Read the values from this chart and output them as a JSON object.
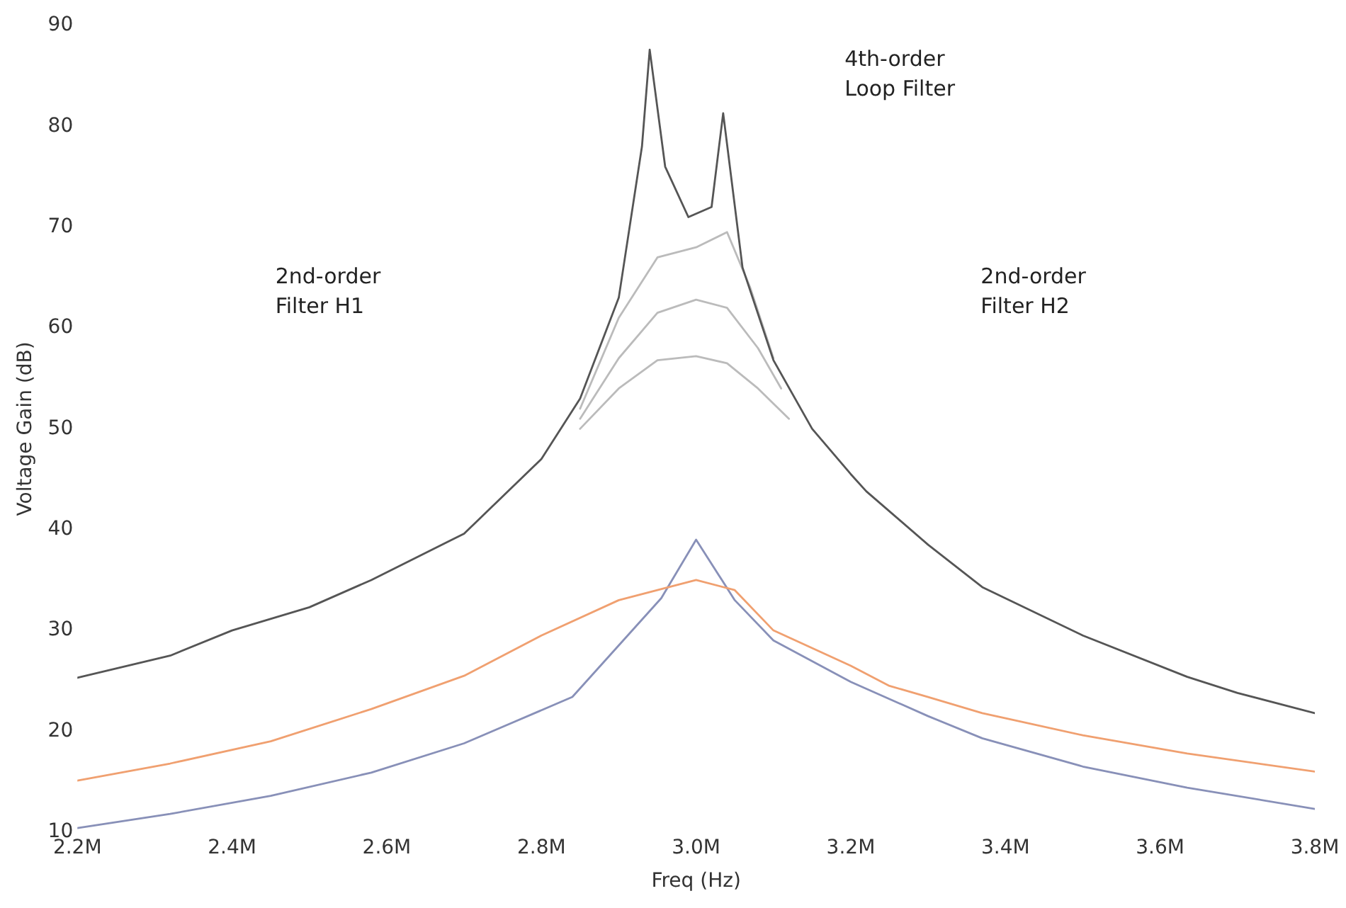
{
  "chart_data": {
    "type": "line",
    "xlabel": "Freq (Hz)",
    "ylabel": "Voltage Gain (dB)",
    "xlim": [
      2200000,
      3800000
    ],
    "ylim": [
      10,
      90
    ],
    "xticks": [
      {
        "value": 2200000,
        "label": "2.2M"
      },
      {
        "value": 2400000,
        "label": "2.4M"
      },
      {
        "value": 2600000,
        "label": "2.6M"
      },
      {
        "value": 2800000,
        "label": "2.8M"
      },
      {
        "value": 3000000,
        "label": "3.0M"
      },
      {
        "value": 3200000,
        "label": "3.2M"
      },
      {
        "value": 3400000,
        "label": "3.4M"
      },
      {
        "value": 3600000,
        "label": "3.6M"
      },
      {
        "value": 3800000,
        "label": "3.8M"
      }
    ],
    "yticks": [
      10,
      20,
      30,
      40,
      50,
      60,
      70,
      80,
      90
    ],
    "grid": false,
    "legend": false,
    "marker": "none",
    "line_style": "solid",
    "annotations": [
      "4th-order\nLoop Filter",
      "2nd-order\nFilter H1",
      "2nd-order\nFilter H2"
    ],
    "series": [
      {
        "color": "#555555",
        "x": [
          2200000,
          2320000,
          2400000,
          2500000,
          2580000,
          2700000,
          2800000,
          2850000,
          2900000,
          2930000,
          2940000,
          2960000,
          2990000,
          3020000,
          3035000,
          3060000,
          3100000,
          3150000,
          3200000,
          3220000,
          3300000,
          3370000,
          3500000,
          3635000,
          3700000,
          3800000
        ],
        "values": [
          25.3,
          27.5,
          30,
          32.3,
          35,
          39.6,
          47,
          53,
          63,
          78,
          87.6,
          76,
          71,
          72,
          81.3,
          66,
          56.8,
          50,
          45.5,
          43.8,
          38.5,
          34.3,
          29.5,
          25.4,
          23.8,
          21.8
        ]
      },
      {
        "color": "#bbbbbb",
        "x": [
          2850000,
          2900000,
          2950000,
          3000000,
          3040000,
          3070000,
          3100000
        ],
        "values": [
          52,
          61,
          67,
          68,
          69.5,
          64,
          57
        ]
      },
      {
        "color": "#bbbbbb",
        "x": [
          2850000,
          2900000,
          2950000,
          3000000,
          3040000,
          3080000,
          3110000
        ],
        "values": [
          51,
          57,
          61.5,
          62.8,
          62,
          58,
          54
        ]
      },
      {
        "color": "#bbbbbb",
        "x": [
          2850000,
          2900000,
          2950000,
          3000000,
          3040000,
          3080000,
          3120000
        ],
        "values": [
          50,
          54,
          56.8,
          57.2,
          56.5,
          54,
          51
        ]
      },
      {
        "color": "#f0a070",
        "x": [
          2200000,
          2320000,
          2450000,
          2580000,
          2700000,
          2800000,
          2900000,
          3000000,
          3050000,
          3100000,
          3200000,
          3250000,
          3300000,
          3370000,
          3500000,
          3635000,
          3800000
        ],
        "values": [
          15.1,
          16.8,
          19,
          22.2,
          25.5,
          29.5,
          33,
          35,
          34,
          30,
          26.5,
          24.5,
          23.4,
          21.8,
          19.6,
          17.8,
          16.0
        ]
      },
      {
        "color": "#8890b8",
        "x": [
          2200000,
          2320000,
          2450000,
          2580000,
          2700000,
          2840000,
          2955000,
          3000000,
          3050000,
          3100000,
          3200000,
          3300000,
          3370000,
          3500000,
          3635000,
          3800000
        ],
        "values": [
          10.4,
          11.8,
          13.6,
          15.9,
          18.8,
          23.4,
          33.2,
          39,
          33,
          29,
          24.9,
          21.5,
          19.3,
          16.5,
          14.4,
          12.3
        ]
      }
    ]
  }
}
